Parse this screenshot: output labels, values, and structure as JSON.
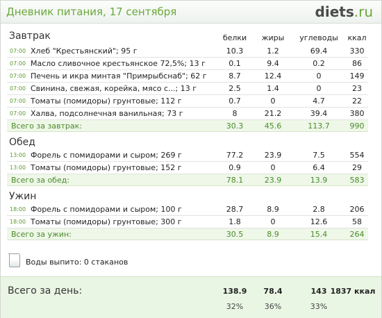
{
  "header": {
    "title": "Дневник питания, 17 сентября",
    "logo_main": "diets",
    "logo_tld": ".ru"
  },
  "columns": {
    "protein": "белки",
    "fat": "жиры",
    "carbs": "углеводы",
    "kcal": "ккал"
  },
  "sections": [
    {
      "name": "Завтрак",
      "items": [
        {
          "time": "07:00",
          "name": "Хлеб \"Крестьянский\"; 95 г",
          "protein": "10.3",
          "fat": "1.2",
          "carbs": "69.4",
          "kcal": "330"
        },
        {
          "time": "07:00",
          "name": "Масло сливочное крестьянское 72,5%; 13 г",
          "protein": "0.1",
          "fat": "9.4",
          "carbs": "0.2",
          "kcal": "86"
        },
        {
          "time": "07:00",
          "name": "Печень и икра минтая \"Примрыбснаб\"; 62 г",
          "protein": "8.7",
          "fat": "12.4",
          "carbs": "0",
          "kcal": "149"
        },
        {
          "time": "07:00",
          "name": "Свинина, свежая, корейка, мясо с...; 13 г",
          "protein": "2.5",
          "fat": "1.4",
          "carbs": "0",
          "kcal": "23"
        },
        {
          "time": "07:00",
          "name": "Томаты (помидоры) грунтовые; 112 г",
          "protein": "0.7",
          "fat": "0",
          "carbs": "4.7",
          "kcal": "22"
        },
        {
          "time": "07:00",
          "name": "Халва, подсолнечная ванильная; 73 г",
          "protein": "8",
          "fat": "21.2",
          "carbs": "39.4",
          "kcal": "380"
        }
      ],
      "total": {
        "label": "Всего за завтрак:",
        "protein": "30.3",
        "fat": "45.6",
        "carbs": "113.7",
        "kcal": "990"
      }
    },
    {
      "name": "Обед",
      "items": [
        {
          "time": "13:00",
          "name": "Форель с помидорами и сыром; 269 г",
          "protein": "77.2",
          "fat": "23.9",
          "carbs": "7.5",
          "kcal": "554"
        },
        {
          "time": "13:00",
          "name": "Томаты (помидоры) грунтовые; 152 г",
          "protein": "0.9",
          "fat": "0",
          "carbs": "6.4",
          "kcal": "29"
        }
      ],
      "total": {
        "label": "Всего за обед:",
        "protein": "78.1",
        "fat": "23.9",
        "carbs": "13.9",
        "kcal": "583"
      }
    },
    {
      "name": "Ужин",
      "items": [
        {
          "time": "18:00",
          "name": "Форель с помидорами и сыром; 100 г",
          "protein": "28.7",
          "fat": "8.9",
          "carbs": "2.8",
          "kcal": "206"
        },
        {
          "time": "18:00",
          "name": "Томаты (помидоры) грунтовые; 300 г",
          "protein": "1.8",
          "fat": "0",
          "carbs": "12.6",
          "kcal": "58"
        }
      ],
      "total": {
        "label": "Всего за ужин:",
        "protein": "30.5",
        "fat": "8.9",
        "carbs": "15.4",
        "kcal": "264"
      }
    }
  ],
  "water": {
    "icon": "glass-icon",
    "text": "Воды выпито: 0 стаканов"
  },
  "day_total": {
    "label": "Всего за день:",
    "protein": "138.9",
    "fat": "78.4",
    "carbs": "143",
    "kcal": "1837 ккал",
    "protein_pct": "32%",
    "fat_pct": "36%",
    "carbs_pct": "33%"
  },
  "colors": {
    "accent": "#6aa83a",
    "total_bg": "#eef7e8",
    "day_bg": "#eaf6e4"
  }
}
